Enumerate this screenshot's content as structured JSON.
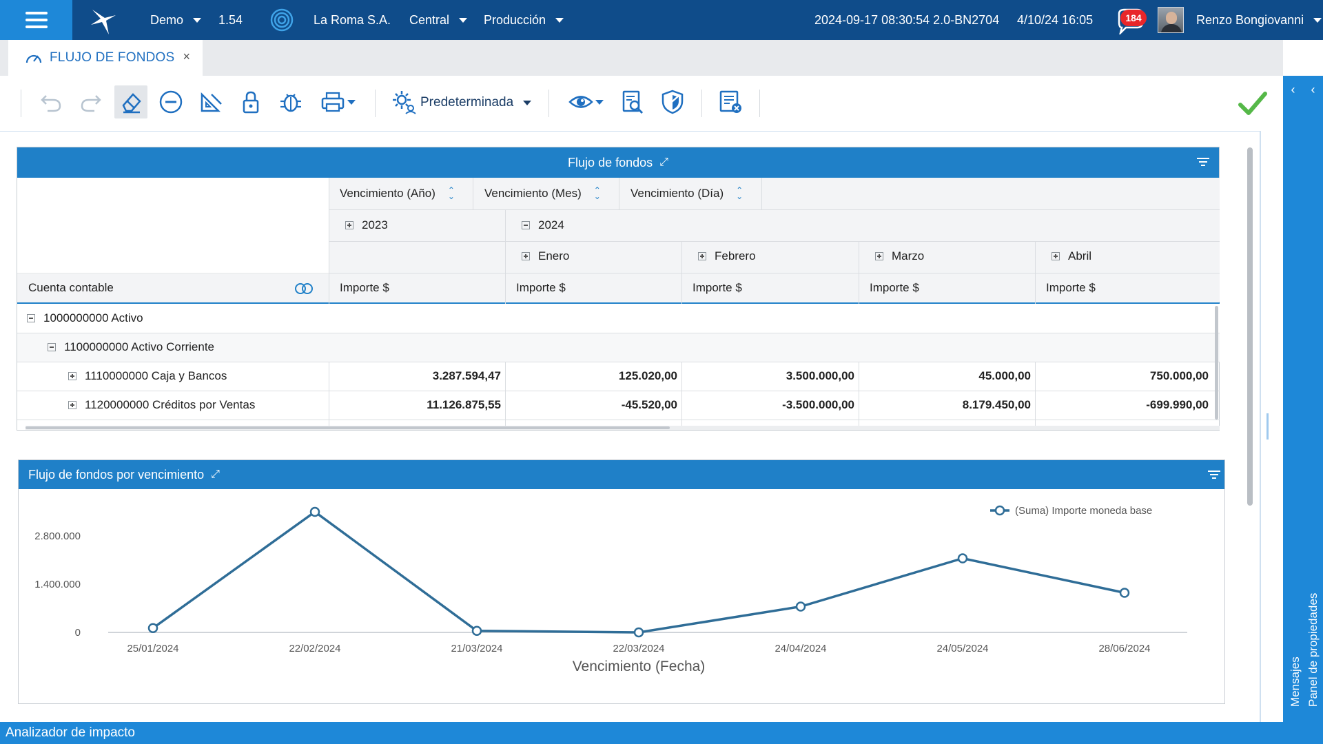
{
  "topbar": {
    "env": "Demo",
    "version": "1.54",
    "company": "La Roma S.A.",
    "branch": "Central",
    "stage": "Producción",
    "build": "2024-09-17 08:30:54 2.0-BN2704",
    "datetime": "4/10/24 16:05",
    "notifications": "184",
    "user": "Renzo Bongiovanni"
  },
  "tab": {
    "label": "FLUJO DE FONDOS",
    "close": "×"
  },
  "toolbar": {
    "profile_label": "Predeterminada",
    "icons": [
      "undo-icon",
      "redo-icon",
      "eraser-icon",
      "remove-icon",
      "design-icon",
      "lock-icon",
      "debug-icon",
      "print-icon",
      "settings-icon",
      "view-icon",
      "inspect-icon",
      "security-icon",
      "clear-list-icon",
      "confirm-icon"
    ]
  },
  "right_panel": {
    "arrows": [
      "‹",
      "‹"
    ],
    "properties": "Panel de propiedades",
    "messages": "Mensajes"
  },
  "pivot": {
    "title": "Flujo de fondos",
    "expand": "⤢",
    "col_fields": [
      "Vencimiento (Año)",
      "Vencimiento (Mes)",
      "Vencimiento (Día)"
    ],
    "row_field": "Cuenta contable",
    "years": [
      "2023",
      "2024"
    ],
    "months": [
      "Enero",
      "Febrero",
      "Marzo",
      "Abril"
    ],
    "measure": "Importe $",
    "rows": [
      {
        "label": "1000000000 Activo",
        "level": 0,
        "sign": "minus",
        "values": [
          "",
          "",
          "",
          "",
          ""
        ]
      },
      {
        "label": "1100000000 Activo Corriente",
        "level": 1,
        "sign": "minus",
        "values": [
          "",
          "",
          "",
          "",
          ""
        ]
      },
      {
        "label": "1110000000 Caja y Bancos",
        "level": 2,
        "sign": "plus",
        "values": [
          "3.287.594,47",
          "125.020,00",
          "3.500.000,00",
          "45.000,00",
          "750.000,00"
        ]
      },
      {
        "label": "1120000000 Créditos por Ventas",
        "level": 2,
        "sign": "plus",
        "values": [
          "11.126.875,55",
          "-45.520,00",
          "-3.500.000,00",
          "8.179.450,00",
          "-699.990,00"
        ]
      }
    ]
  },
  "chart_widget": {
    "title": "Flujo de fondos por vencimiento",
    "expand": "⤢"
  },
  "chart_data": {
    "type": "line",
    "title": "",
    "xlabel": "Vencimiento (Fecha)",
    "ylabel": "",
    "categories": [
      "25/01/2024",
      "22/02/2024",
      "21/03/2024",
      "22/03/2024",
      "24/04/2024",
      "24/05/2024",
      "28/06/2024"
    ],
    "series": [
      {
        "name": "(Suma) Importe moneda base",
        "values": [
          125020,
          3500000,
          45000,
          0,
          750000,
          2150000,
          1150000
        ]
      }
    ],
    "yticks": [
      0,
      1400000,
      2800000
    ],
    "ytick_labels": [
      "0",
      "1.400.000",
      "2.800.000"
    ],
    "ylim": [
      0,
      3600000
    ],
    "color": "#2f6d97",
    "grid": false,
    "legend": "top-right"
  },
  "bottombar": {
    "label": "Analizador de impacto"
  },
  "colors": {
    "topbar": "#0f4c8a",
    "accent": "#1e88d8",
    "panel_header": "#1f80c8",
    "tab_text": "#1f6fc0",
    "check": "#55b848"
  }
}
